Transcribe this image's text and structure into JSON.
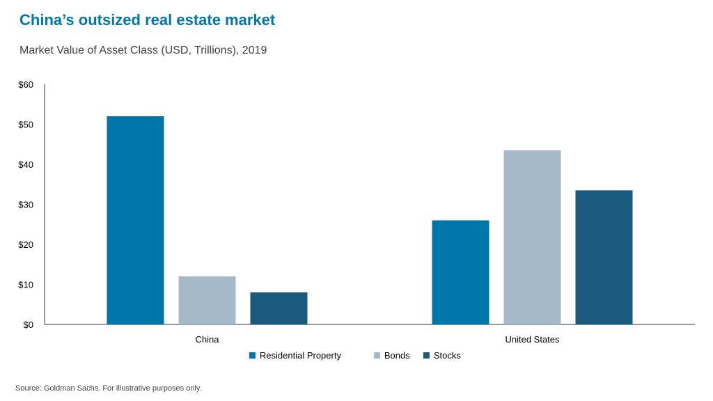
{
  "title": "China’s outsized real estate market",
  "subtitle": "Market Value of Asset Class (USD, Trillions), 2019",
  "source": "Source: Goldman Sachs. For illustrative purposes only.",
  "colors": {
    "accent": "#0077aa",
    "text": "#404040"
  },
  "chart_data": {
    "type": "bar",
    "categories": [
      "China",
      "United States"
    ],
    "series": [
      {
        "name": "Residential Property",
        "color": "#0077aa",
        "values": [
          52,
          26
        ]
      },
      {
        "name": "Bonds",
        "color": "#a5b9c9",
        "values": [
          12,
          43.5
        ]
      },
      {
        "name": "Stocks",
        "color": "#1b5a7e",
        "values": [
          8,
          33.5
        ]
      }
    ],
    "ylim": [
      0,
      60
    ],
    "yticks": [
      0,
      10,
      20,
      30,
      40,
      50,
      60
    ],
    "ytick_labels": [
      "$0",
      "$10",
      "$20",
      "$30",
      "$40",
      "$50",
      "$60"
    ],
    "grid": false,
    "legend_position": "bottom"
  }
}
